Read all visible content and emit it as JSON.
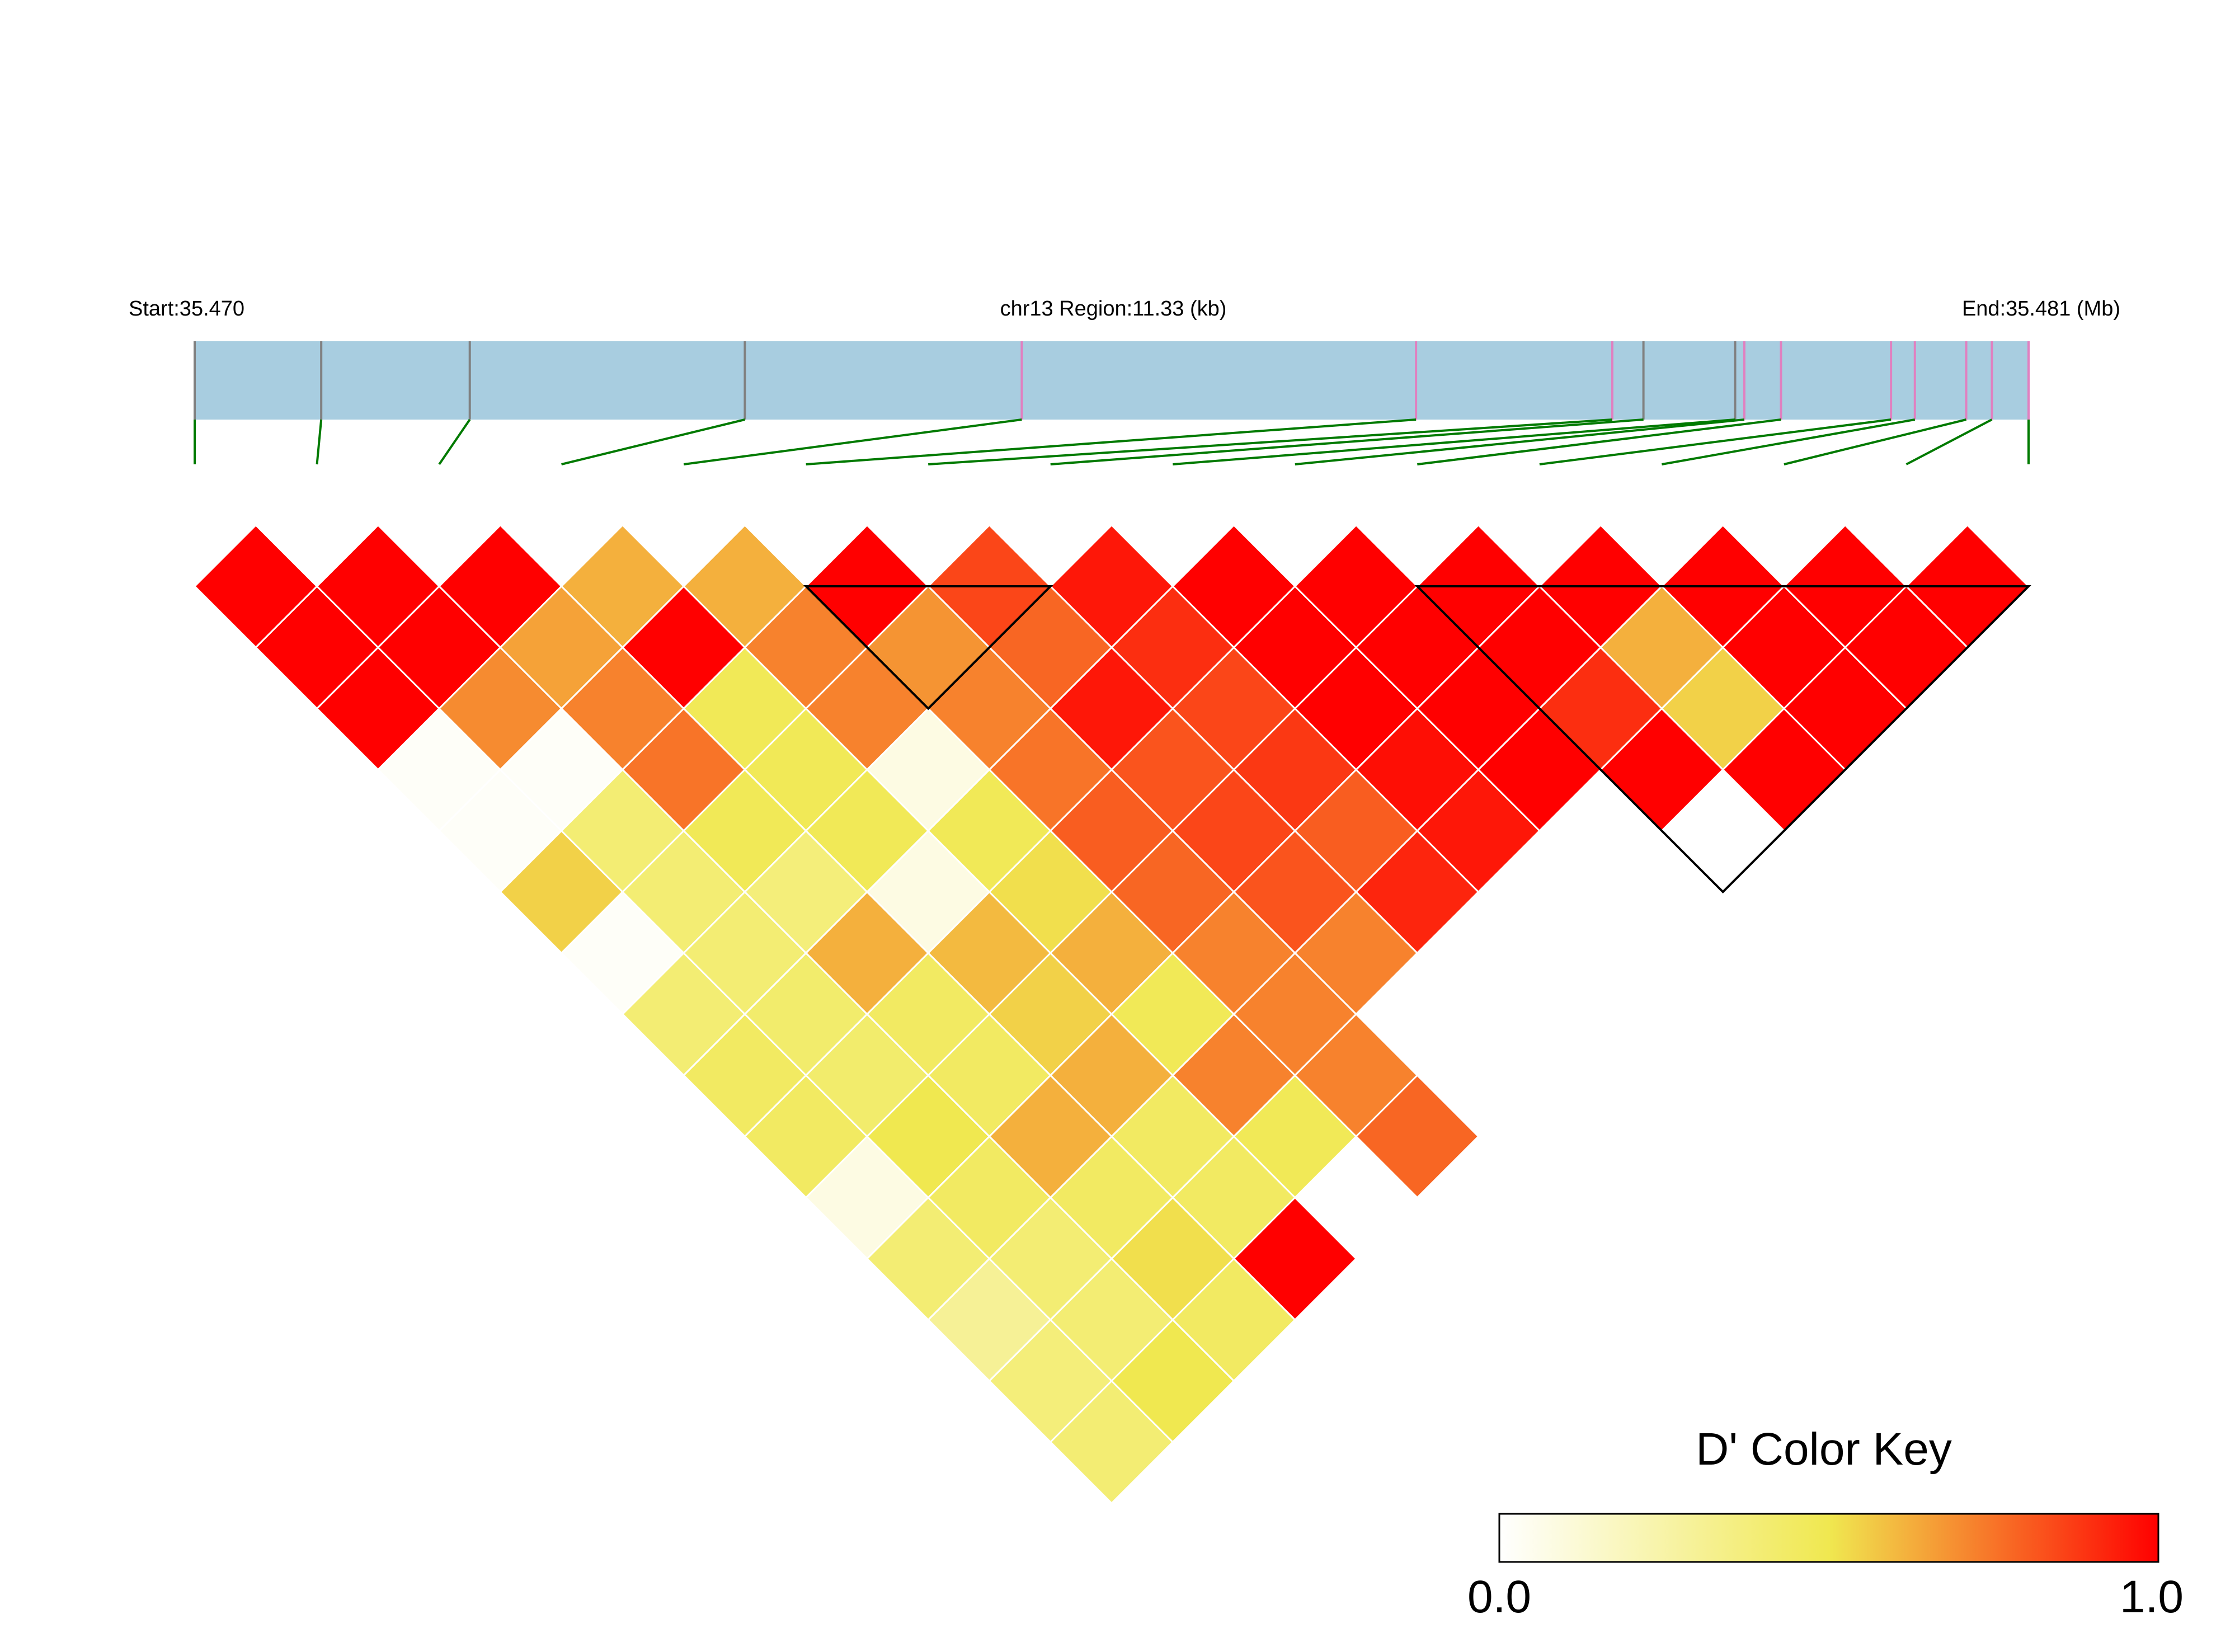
{
  "header": {
    "start_label": "Start:35.470",
    "region_label": "chr13 Region:11.33 (kb)",
    "end_label": "End:35.481 (Mb)"
  },
  "colors": {
    "track_fill": "#A8CDE0",
    "snp_tick_grey": "#808080",
    "snp_tick_pink": "#E080C0",
    "connector_line": "#007A00",
    "cell_border": "#FFFFFF",
    "block_outline": "#000000"
  },
  "color_key": {
    "title": "D' Color Key",
    "min_label": "0.0",
    "max_label": "1.0",
    "stops": [
      "#FFFFFF",
      "#F0E850",
      "#FF0000"
    ]
  },
  "chart_data": {
    "type": "heatmap",
    "title": "",
    "n_snps": 16,
    "snp_positions": [
      0.0,
      0.069,
      0.15,
      0.3,
      0.451,
      0.666,
      0.773,
      0.79,
      0.84,
      0.845,
      0.865,
      0.925,
      0.938,
      0.966,
      0.98,
      1.0
    ],
    "snp_tick_types": [
      "grey",
      "grey",
      "grey",
      "grey",
      "pink",
      "pink",
      "pink",
      "grey",
      "grey",
      "pink",
      "pink",
      "pink",
      "pink",
      "pink",
      "pink",
      "pink"
    ],
    "d_prime_matrix": [
      [
        1.0,
        1.0,
        1.0,
        0.02,
        0.02,
        0.55,
        0.02,
        0.4,
        0.45,
        0.45,
        0.08,
        0.4,
        0.3,
        0.38,
        0.4,
        0.45
      ],
      [
        1.0,
        1.0,
        0.7,
        0.02,
        0.4,
        0.4,
        0.4,
        0.42,
        0.42,
        0.5,
        0.45,
        0.4,
        0.4,
        0.5,
        0.38
      ],
      [
        1.0,
        0.65,
        0.72,
        0.75,
        0.48,
        0.38,
        0.62,
        0.45,
        0.45,
        0.62,
        0.45,
        0.52,
        0.45
      ],
      [
        0.62,
        1.0,
        0.48,
        0.48,
        0.48,
        0.08,
        0.6,
        0.55,
        0.62,
        0.45,
        0.45,
        1.0
      ],
      [
        0.62,
        0.72,
        0.72,
        0.08,
        0.48,
        0.52,
        0.62,
        0.48,
        0.72,
        0.48
      ],
      [
        1.0,
        0.68,
        0.72,
        0.75,
        0.8,
        0.78,
        0.72,
        0.72,
        0.72,
        0.78
      ],
      [
        0.85,
        0.78,
        0.95,
        0.82,
        0.85,
        0.82,
        0.72
      ],
      [
        0.95,
        0.9,
        0.85,
        0.88,
        0.8,
        0.92
      ],
      [
        1.0,
        1.0,
        1.0,
        0.97,
        0.95
      ],
      [
        1.0,
        1.0,
        1.0,
        1.0
      ],
      [
        1.0,
        1.0,
        0.9,
        1.0
      ],
      [
        1.0,
        0.62,
        0.55,
        1.0
      ],
      [
        1.0,
        1.0,
        1.0
      ],
      [
        1.0,
        1.0,
        0.88
      ],
      [
        1.0,
        1.0
      ],
      [
        1.0
      ]
    ],
    "ld_blocks": [
      [
        5,
        7
      ],
      [
        10,
        15
      ]
    ],
    "colorscale": [
      "white",
      "yellow",
      "red"
    ],
    "range": [
      0.0,
      1.0
    ]
  }
}
